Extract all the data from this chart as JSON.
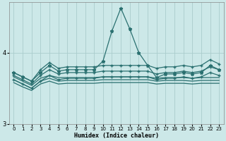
{
  "xlabel": "Humidex (Indice chaleur)",
  "xlim": [
    -0.5,
    23.5
  ],
  "ylim": [
    3.0,
    4.7
  ],
  "yticks": [
    3,
    4
  ],
  "bg_color": "#cce8e8",
  "line_color": "#2a7070",
  "grid_color": "#aacccc",
  "spike": [
    3.72,
    3.66,
    3.6,
    3.72,
    3.82,
    3.74,
    3.76,
    3.76,
    3.76,
    3.76,
    3.88,
    4.3,
    4.62,
    4.33,
    4.0,
    3.82,
    3.65,
    3.7,
    3.7,
    3.72,
    3.7,
    3.72,
    3.82,
    3.76
  ],
  "fan_top": [
    3.72,
    3.66,
    3.6,
    3.76,
    3.86,
    3.78,
    3.8,
    3.8,
    3.8,
    3.8,
    3.82,
    3.82,
    3.82,
    3.82,
    3.82,
    3.82,
    3.78,
    3.8,
    3.8,
    3.82,
    3.8,
    3.82,
    3.9,
    3.84
  ],
  "fan_mid_upper": [
    3.68,
    3.62,
    3.56,
    3.68,
    3.76,
    3.7,
    3.72,
    3.72,
    3.72,
    3.72,
    3.74,
    3.74,
    3.74,
    3.74,
    3.74,
    3.74,
    3.7,
    3.72,
    3.72,
    3.74,
    3.72,
    3.74,
    3.8,
    3.76
  ],
  "flat_upper": [
    3.66,
    3.6,
    3.54,
    3.64,
    3.68,
    3.65,
    3.65,
    3.65,
    3.65,
    3.65,
    3.66,
    3.66,
    3.66,
    3.66,
    3.66,
    3.66,
    3.64,
    3.65,
    3.65,
    3.65,
    3.64,
    3.65,
    3.65,
    3.65
  ],
  "flat_lower": [
    3.62,
    3.56,
    3.5,
    3.6,
    3.64,
    3.6,
    3.61,
    3.61,
    3.61,
    3.61,
    3.62,
    3.62,
    3.62,
    3.62,
    3.62,
    3.62,
    3.6,
    3.61,
    3.61,
    3.61,
    3.6,
    3.61,
    3.61,
    3.61
  ],
  "bottom_flat": [
    3.58,
    3.52,
    3.47,
    3.56,
    3.6,
    3.56,
    3.57,
    3.57,
    3.57,
    3.57,
    3.58,
    3.58,
    3.58,
    3.58,
    3.58,
    3.58,
    3.56,
    3.57,
    3.57,
    3.57,
    3.56,
    3.57,
    3.57,
    3.57
  ],
  "fan_mid_lower": [
    3.62,
    3.56,
    3.5,
    3.6,
    3.68,
    3.62,
    3.64,
    3.64,
    3.64,
    3.64,
    3.66,
    3.66,
    3.66,
    3.66,
    3.66,
    3.66,
    3.62,
    3.64,
    3.64,
    3.66,
    3.64,
    3.66,
    3.72,
    3.68
  ]
}
